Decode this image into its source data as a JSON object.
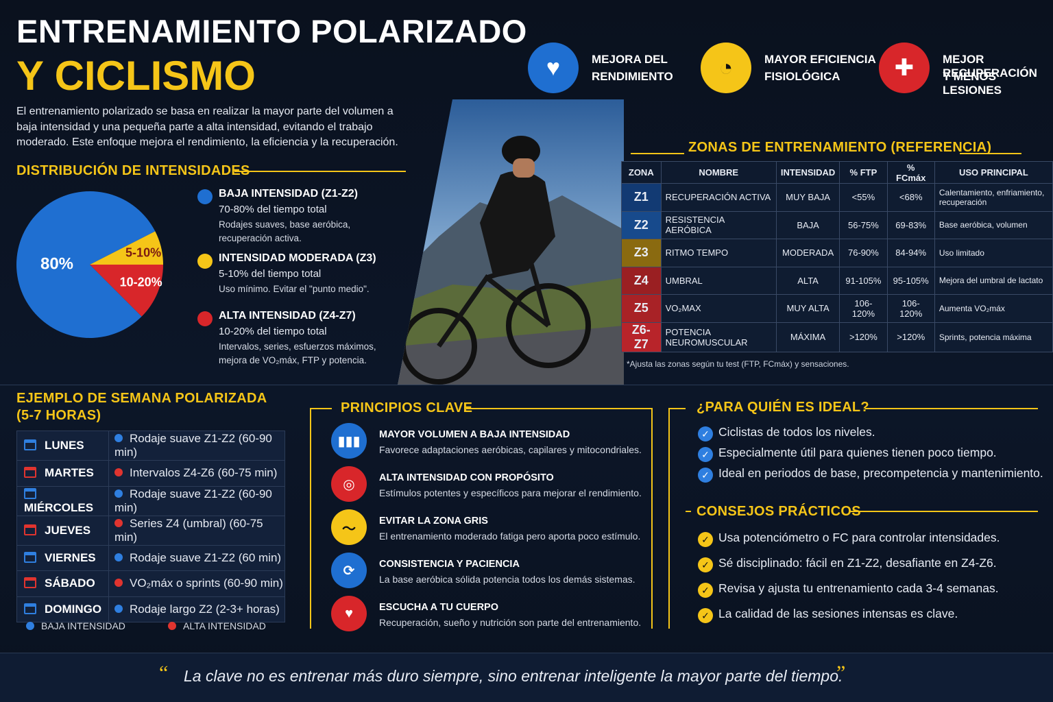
{
  "header": {
    "title_line1": "ENTRENAMIENTO POLARIZADO",
    "title_line2": "Y CICLISMO",
    "intro": "El entrenamiento polarizado se basa en realizar la mayor parte del volumen a baja intensidad y una pequeña parte a alta intensidad, evitando el trabajo moderado. Este enfoque mejora el rendimiento, la eficiencia y la recuperación."
  },
  "benefits": [
    {
      "lines": [
        "MEJORA DEL",
        "RENDIMIENTO"
      ],
      "color": "#1f6fd1"
    },
    {
      "lines": [
        "MAYOR EFICIENCIA",
        "FISIOLÓGICA"
      ],
      "color": "#f5c518"
    },
    {
      "lines": [
        "MEJOR RECUPERACIÓN",
        "Y MENOS LESIONES"
      ],
      "color": "#d8262a"
    }
  ],
  "distribution": {
    "heading": "DISTRIBUCIÓN DE INTENSIDADES",
    "legend": [
      {
        "subtitle": "70-80% del tiempo total",
        "desc": [
          "Rodajes suaves, base aeróbica,",
          "recuperación activa."
        ]
      },
      {
        "subtitle": "5-10% del tiempo total",
        "desc": [
          "Uso mínimo. Evitar el \"punto medio\"."
        ]
      },
      {
        "subtitle": "10-20% del tiempo total",
        "desc": [
          "Intervalos, series, esfuerzos máximos,",
          "mejora de VO₂máx, FTP y potencia."
        ]
      }
    ]
  },
  "chart_data": {
    "type": "pie",
    "categories": [
      "BAJA INTENSIDAD (Z1-Z2)",
      "INTENSIDAD MODERADA (Z3)",
      "ALTA INTENSIDAD (Z4-Z7)"
    ],
    "values": [
      80,
      7.5,
      12.5
    ],
    "value_labels": [
      "80%",
      "5-10%",
      "10-20%"
    ],
    "colors": [
      "#1f6fd1",
      "#f5c518",
      "#d8262a"
    ]
  },
  "zones": {
    "heading": "ZONAS DE ENTRENAMIENTO (REFERENCIA)",
    "columns": [
      "ZONA",
      "NOMBRE",
      "INTENSIDAD",
      "% FTP",
      "% FCmáx",
      "USO PRINCIPAL"
    ],
    "rows": [
      [
        "Z1",
        "RECUPERACIÓN ACTIVA",
        "MUY BAJA",
        "<55%",
        "<68%",
        "Calentamiento, enfriamiento, recuperación"
      ],
      [
        "Z2",
        "RESISTENCIA AERÓBICA",
        "BAJA",
        "56-75%",
        "69-83%",
        "Base aeróbica, volumen"
      ],
      [
        "Z3",
        "RITMO TEMPO",
        "MODERADA",
        "76-90%",
        "84-94%",
        "Uso limitado"
      ],
      [
        "Z4",
        "UMBRAL",
        "ALTA",
        "91-105%",
        "95-105%",
        "Mejora del umbral de lactato"
      ],
      [
        "Z5",
        "VO₂MAX",
        "MUY ALTA",
        "106-120%",
        "106-120%",
        "Aumenta VO₂máx"
      ],
      [
        "Z6-Z7",
        "POTENCIA NEUROMUSCULAR",
        "MÁXIMA",
        ">120%",
        ">120%",
        "Sprints, potencia máxima"
      ]
    ],
    "zone_colors": [
      "#123a73",
      "#174a8c",
      "#8a6a10",
      "#9a1f22",
      "#a82226",
      "#b8242a"
    ],
    "note": "*Ajusta las zonas según tu test (FTP, FCmáx) y sensaciones."
  },
  "week": {
    "heading": [
      "EJEMPLO DE SEMANA POLARIZADA",
      "(5-7 HORAS)"
    ],
    "days": [
      {
        "day": "LUNES",
        "session": "Rodaje suave Z1-Z2 (60-90 min)",
        "color": "#2f7fe0"
      },
      {
        "day": "MARTES",
        "session": "Intervalos Z4-Z6 (60-75 min)",
        "color": "#e0342f"
      },
      {
        "day": "MIÉRCOLES",
        "session": "Rodaje suave Z1-Z2 (60-90 min)",
        "color": "#2f7fe0"
      },
      {
        "day": "JUEVES",
        "session": "Series Z4 (umbral) (60-75 min)",
        "color": "#e0342f"
      },
      {
        "day": "VIERNES",
        "session": "Rodaje suave Z1-Z2 (60 min)",
        "color": "#2f7fe0"
      },
      {
        "day": "SÁBADO",
        "session": "VO₂máx o sprints (60-90 min)",
        "color": "#e0342f"
      },
      {
        "day": "DOMINGO",
        "session": "Rodaje largo Z2 (2-3+ horas)",
        "color": "#2f7fe0"
      }
    ],
    "legend": [
      {
        "label": "BAJA INTENSIDAD",
        "color": "#2f7fe0"
      },
      {
        "label": "ALTA INTENSIDAD",
        "color": "#e0342f"
      }
    ]
  },
  "principles": {
    "heading": "PRINCIPIOS CLAVE",
    "items": [
      {
        "title": "MAYOR VOLUMEN A BAJA INTENSIDAD",
        "desc": "Favorece adaptaciones aeróbicas, capilares y mitocondriales.",
        "color": "#1f6fd1"
      },
      {
        "title": "ALTA INTENSIDAD CON PROPÓSITO",
        "desc": "Estímulos potentes y específicos para mejorar el rendimiento.",
        "color": "#d8262a"
      },
      {
        "title": "EVITAR LA ZONA GRIS",
        "desc": "El entrenamiento moderado fatiga pero aporta poco estímulo.",
        "color": "#f5c518"
      },
      {
        "title": "CONSISTENCIA Y PACIENCIA",
        "desc": "La base aeróbica sólida potencia todos los demás sistemas.",
        "color": "#1f6fd1"
      },
      {
        "title": "ESCUCHA A TU CUERPO",
        "desc": "Recuperación, sueño y nutrición son parte del entrenamiento.",
        "color": "#d8262a"
      }
    ]
  },
  "ideal": {
    "heading": "¿PARA QUIÉN ES IDEAL?",
    "items": [
      "Ciclistas de todos los niveles.",
      "Especialmente útil para quienes tienen poco tiempo.",
      "Ideal en periodos de base, precompetencia y mantenimiento."
    ]
  },
  "tips": {
    "heading": "CONSEJOS PRÁCTICOS",
    "items": [
      "Usa potenciómetro o FC para controlar intensidades.",
      "Sé disciplinado: fácil en Z1-Z2, desafiante en Z4-Z6.",
      "Revisa y ajusta tu entrenamiento cada 3-4 semanas.",
      "La calidad de las sesiones intensas es clave."
    ]
  },
  "quote": "La clave no es entrenar más duro siempre, sino entrenar inteligente la mayor parte del tiempo."
}
